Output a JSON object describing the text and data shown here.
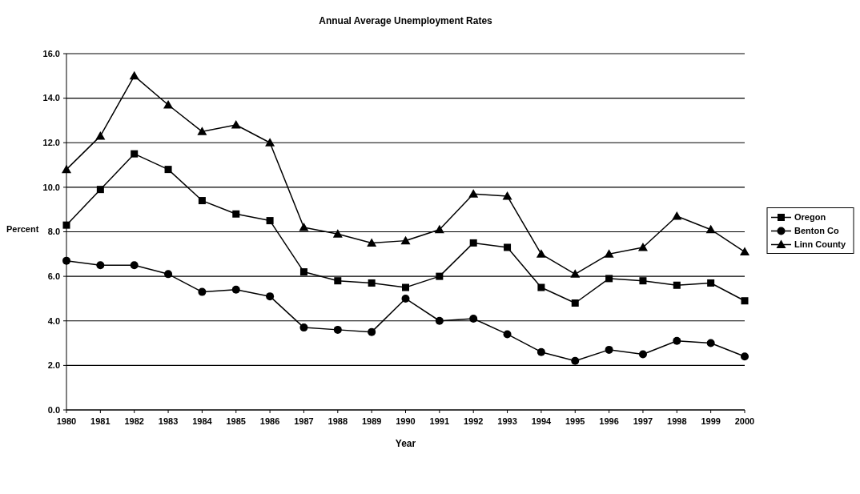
{
  "chart_data": {
    "type": "line",
    "title": "Annual Average Unemployment Rates",
    "xlabel": "Year",
    "ylabel": "Percent",
    "categories": [
      "1980",
      "1981",
      "1982",
      "1983",
      "1984",
      "1985",
      "1986",
      "1987",
      "1988",
      "1989",
      "1990",
      "1991",
      "1992",
      "1993",
      "1994",
      "1995",
      "1996",
      "1997",
      "1998",
      "1999",
      "2000"
    ],
    "series": [
      {
        "name": "Oregon",
        "color": "#000000",
        "marker": "square",
        "values": [
          8.3,
          9.9,
          11.5,
          10.8,
          9.4,
          8.8,
          8.5,
          6.2,
          5.8,
          5.7,
          5.5,
          6.0,
          7.5,
          7.3,
          5.5,
          4.8,
          5.9,
          5.8,
          5.6,
          5.7,
          4.9
        ]
      },
      {
        "name": "Benton Co",
        "color": "#000000",
        "marker": "circle",
        "values": [
          6.7,
          6.5,
          6.5,
          6.1,
          5.3,
          5.4,
          5.1,
          3.7,
          3.6,
          3.5,
          5.0,
          4.0,
          4.1,
          3.4,
          2.6,
          2.2,
          2.7,
          2.5,
          3.1,
          3.0,
          2.4
        ]
      },
      {
        "name": "Linn County",
        "color": "#000000",
        "marker": "triangle",
        "values": [
          10.8,
          12.3,
          15.0,
          13.7,
          12.5,
          12.8,
          12.0,
          8.2,
          7.9,
          7.5,
          7.6,
          8.1,
          9.7,
          9.6,
          7.0,
          6.1,
          7.0,
          7.3,
          8.7,
          8.1,
          7.1
        ]
      }
    ],
    "ylim": [
      0,
      16
    ],
    "yticks": [
      {
        "value": 0,
        "label": "0.0"
      },
      {
        "value": 2,
        "label": "2.0"
      },
      {
        "value": 4,
        "label": "4.0"
      },
      {
        "value": 6,
        "label": "6.0"
      },
      {
        "value": 8,
        "label": "8.0"
      },
      {
        "value": 10,
        "label": "10.0"
      },
      {
        "value": 12,
        "label": "12.0"
      },
      {
        "value": 14,
        "label": "14.0"
      },
      {
        "value": 16,
        "label": "16.0"
      }
    ],
    "grid": "y",
    "legend": "right",
    "line_style": "solid"
  }
}
